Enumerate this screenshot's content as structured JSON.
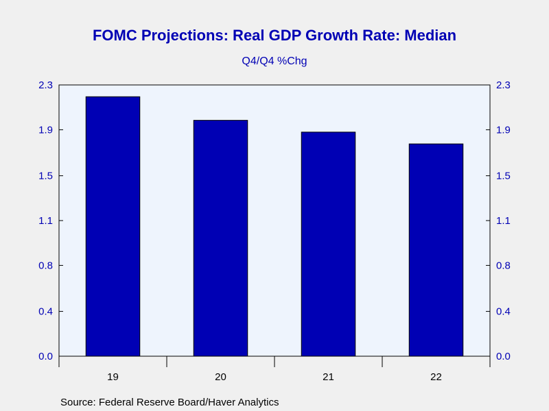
{
  "chart_data": {
    "type": "bar",
    "title": "FOMC Projections: Real GDP Growth Rate: Median",
    "subtitle": "Q4/Q4 %Chg",
    "categories": [
      "19",
      "20",
      "21",
      "22"
    ],
    "values": [
      2.2,
      2.0,
      1.9,
      1.8
    ],
    "xlabel": "",
    "ylabel": "",
    "ylim": [
      0.0,
      2.3
    ],
    "yticks": [
      "0.0",
      "0.4",
      "0.8",
      "1.1",
      "1.5",
      "1.9",
      "2.3"
    ],
    "ytick_values": [
      0.0,
      0.38,
      0.77,
      1.15,
      1.53,
      1.92,
      2.3
    ],
    "grid": false,
    "legend": "none",
    "dual_y_axis_labels": true,
    "source": "Source:  Federal Reserve Board/Haver Analytics"
  },
  "colors": {
    "background": "#f0f0f0",
    "plot_background": "#eef4fd",
    "bar_fill": "#0000b4",
    "bar_stroke": "#000000",
    "title": "#0000b4",
    "axis_labels": "#0000b4",
    "category_labels": "#000000"
  }
}
